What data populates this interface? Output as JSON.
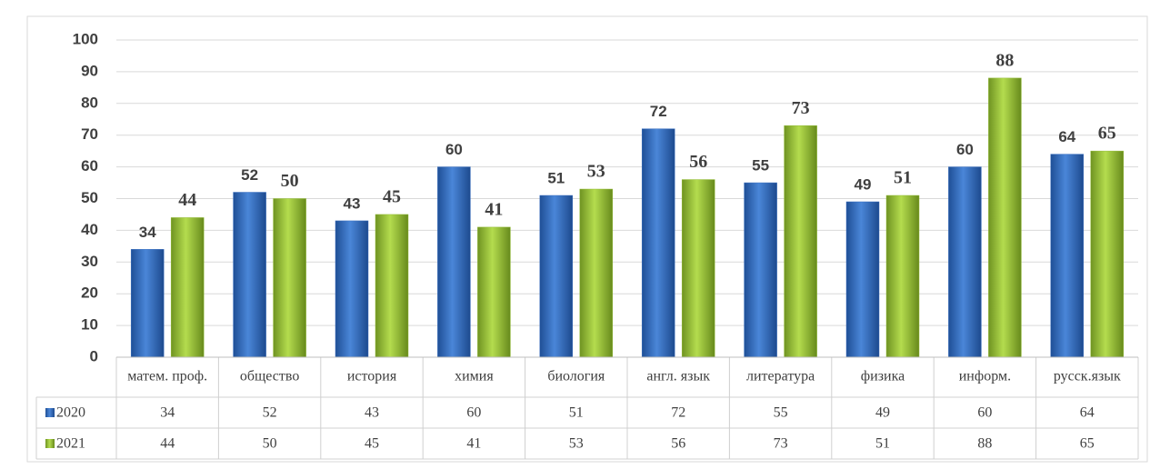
{
  "chart_data": {
    "type": "bar",
    "categories": [
      "матем. проф.",
      "общество",
      "история",
      "химия",
      "биология",
      "англ. язык",
      "литература",
      "физика",
      "информ.",
      "русск.язык"
    ],
    "series": [
      {
        "name": "2020",
        "color": "#3a6fc0",
        "values": [
          34,
          52,
          43,
          60,
          51,
          72,
          55,
          49,
          60,
          64
        ]
      },
      {
        "name": "2021",
        "color": "#92bb36",
        "values": [
          44,
          50,
          45,
          41,
          53,
          56,
          73,
          51,
          88,
          65
        ]
      }
    ],
    "ylim": [
      0,
      100
    ],
    "yticks": [
      0,
      10,
      20,
      30,
      40,
      50,
      60,
      70,
      80,
      90,
      100
    ],
    "grid": true,
    "data_table": true
  }
}
